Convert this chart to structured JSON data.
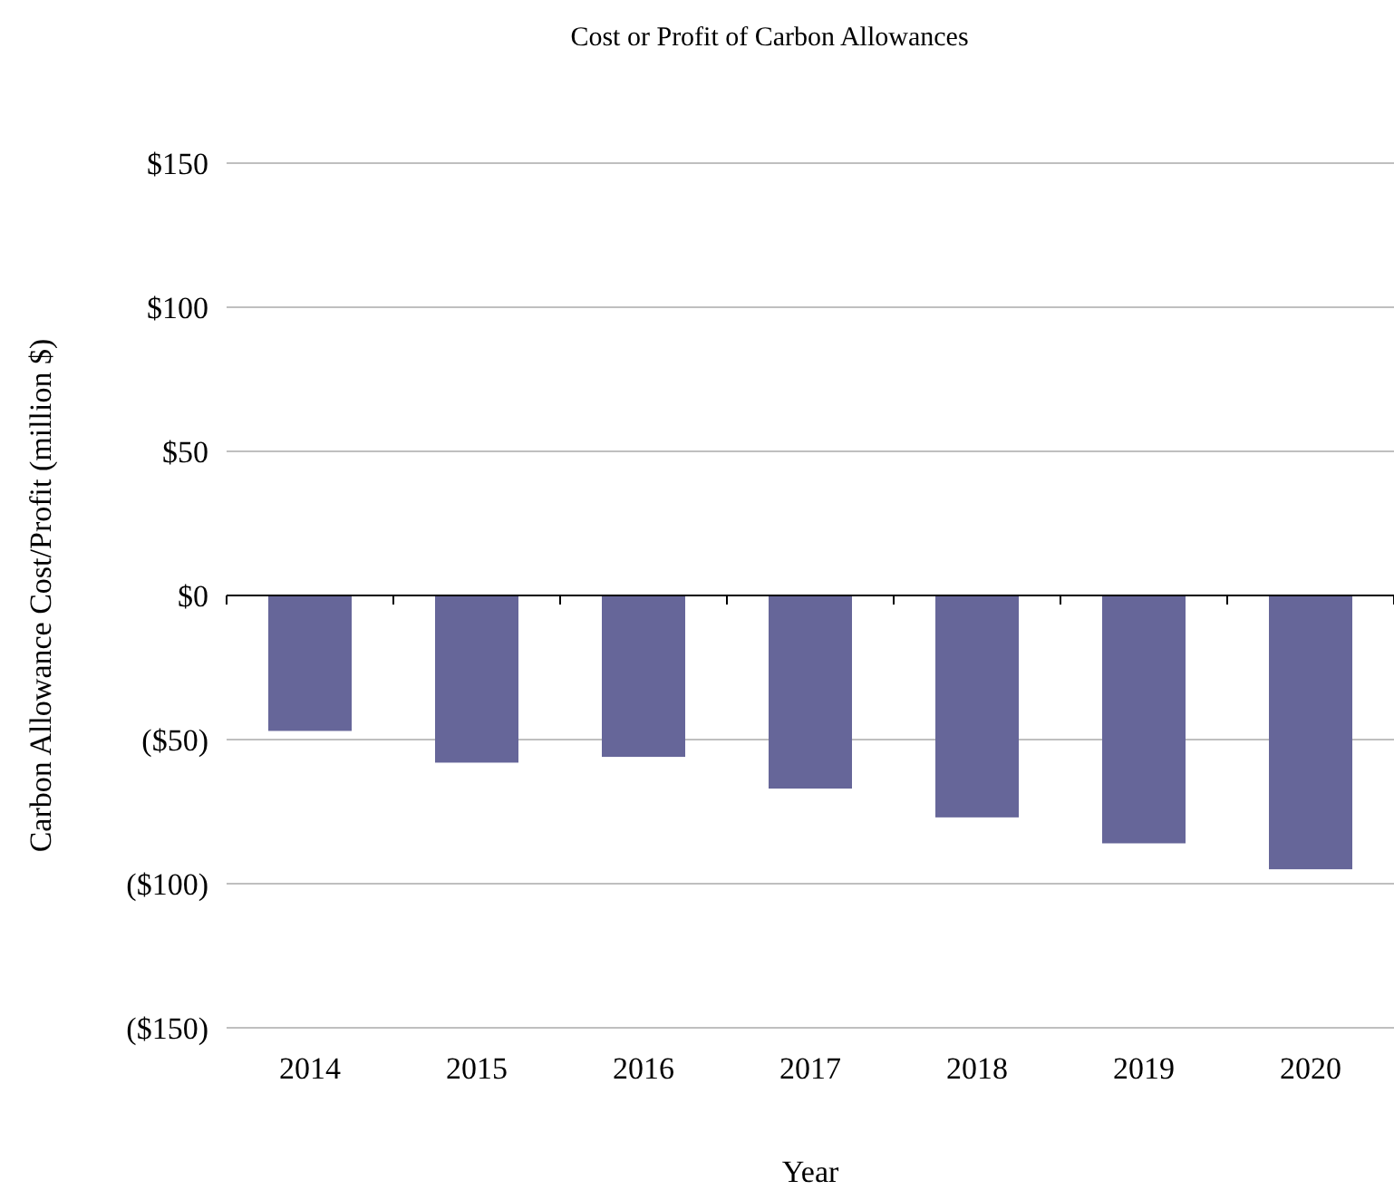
{
  "chart_data": {
    "type": "bar",
    "title": "Cost or Profit of Carbon Allowances",
    "xlabel": "Year",
    "ylabel": "Carbon Allowance Cost/Profit (million $)",
    "categories": [
      "2014",
      "2015",
      "2016",
      "2017",
      "2018",
      "2019",
      "2020"
    ],
    "values": [
      -47,
      -58,
      -56,
      -67,
      -77,
      -86,
      -95
    ],
    "color": "#666699",
    "ylim": [
      -150,
      150
    ],
    "yticks": [
      {
        "value": -150,
        "label": "($150)"
      },
      {
        "value": -100,
        "label": "($100)"
      },
      {
        "value": -50,
        "label": "($50)"
      },
      {
        "value": 0,
        "label": "$0"
      },
      {
        "value": 50,
        "label": "$50"
      },
      {
        "value": 100,
        "label": "$100"
      },
      {
        "value": 150,
        "label": "$150"
      }
    ],
    "grid": true
  }
}
